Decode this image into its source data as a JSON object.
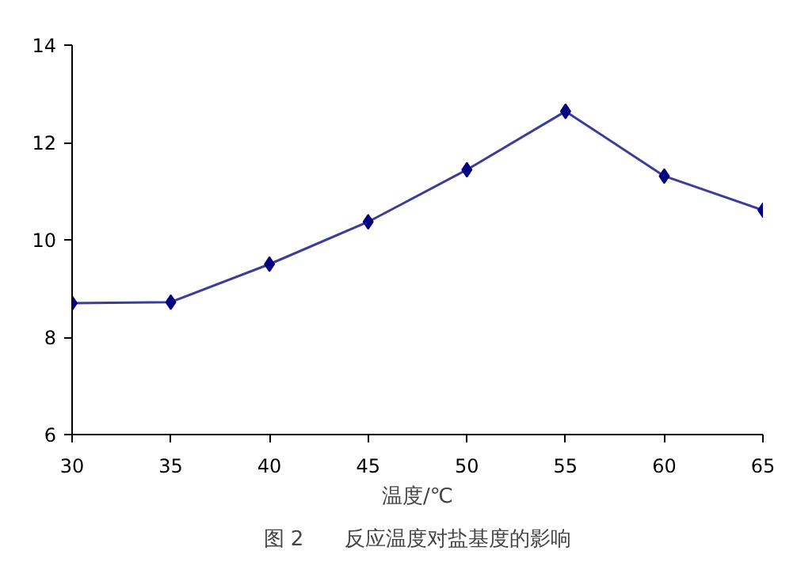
{
  "chart_data": {
    "type": "line",
    "xlabel": "温度/℃",
    "annotations": [
      "图 2　　反应温度对盐基度的影响"
    ],
    "x": [
      30,
      35,
      40,
      45,
      50,
      55,
      60,
      65
    ],
    "series": [
      {
        "color": "#000080",
        "values": [
          8.7,
          8.72,
          9.5,
          10.37,
          11.44,
          12.64,
          11.31,
          10.61
        ]
      }
    ],
    "xlim": [
      30,
      65
    ],
    "ylim": [
      6,
      14
    ],
    "xticks": [
      30,
      35,
      40,
      45,
      50,
      55,
      60,
      65
    ],
    "yticks": [
      6,
      8,
      10,
      12,
      14
    ],
    "grid": false,
    "marker": "diamond",
    "line_style": "solid"
  }
}
